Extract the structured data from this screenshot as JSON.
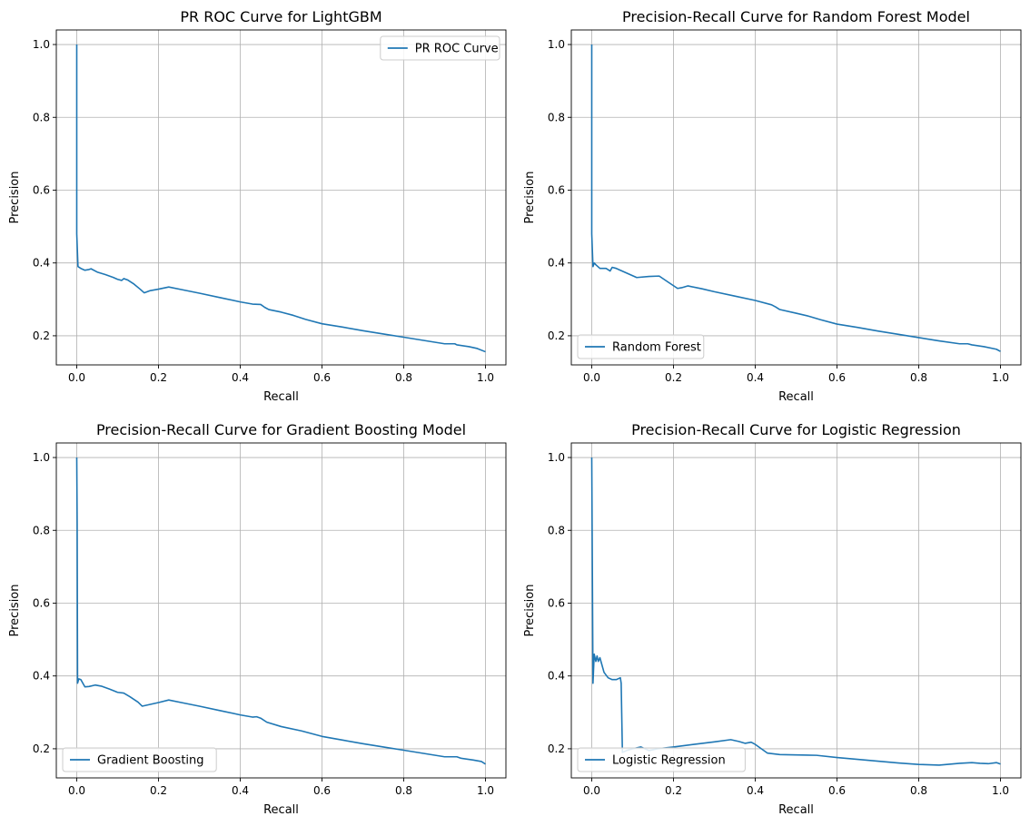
{
  "chart_data": [
    {
      "type": "line",
      "title": "PR ROC Curve for LightGBM",
      "xlabel": "Recall",
      "ylabel": "Precision",
      "xlim": [
        -0.05,
        1.05
      ],
      "ylim": [
        0.12,
        1.04
      ],
      "xticks": [
        "0.0",
        "0.2",
        "0.4",
        "0.6",
        "0.8",
        "1.0"
      ],
      "yticks": [
        "0.2",
        "0.4",
        "0.6",
        "0.8",
        "1.0"
      ],
      "grid": true,
      "legend": "upper right",
      "color": "#1f77b4",
      "series": [
        {
          "name": "PR ROC Curve",
          "points": [
            [
              0.0,
              1.0
            ],
            [
              0.0,
              0.48
            ],
            [
              0.003,
              0.39
            ],
            [
              0.01,
              0.385
            ],
            [
              0.02,
              0.38
            ],
            [
              0.03,
              0.382
            ],
            [
              0.035,
              0.384
            ],
            [
              0.05,
              0.375
            ],
            [
              0.07,
              0.368
            ],
            [
              0.09,
              0.36
            ],
            [
              0.1,
              0.355
            ],
            [
              0.11,
              0.352
            ],
            [
              0.115,
              0.357
            ],
            [
              0.125,
              0.353
            ],
            [
              0.14,
              0.342
            ],
            [
              0.155,
              0.328
            ],
            [
              0.165,
              0.318
            ],
            [
              0.18,
              0.324
            ],
            [
              0.2,
              0.328
            ],
            [
              0.225,
              0.334
            ],
            [
              0.26,
              0.326
            ],
            [
              0.3,
              0.317
            ],
            [
              0.35,
              0.305
            ],
            [
              0.4,
              0.293
            ],
            [
              0.43,
              0.287
            ],
            [
              0.45,
              0.286
            ],
            [
              0.46,
              0.278
            ],
            [
              0.47,
              0.272
            ],
            [
              0.5,
              0.265
            ],
            [
              0.53,
              0.256
            ],
            [
              0.56,
              0.245
            ],
            [
              0.6,
              0.233
            ],
            [
              0.65,
              0.224
            ],
            [
              0.7,
              0.214
            ],
            [
              0.75,
              0.205
            ],
            [
              0.8,
              0.196
            ],
            [
              0.85,
              0.187
            ],
            [
              0.9,
              0.178
            ],
            [
              0.925,
              0.178
            ],
            [
              0.93,
              0.175
            ],
            [
              0.96,
              0.17
            ],
            [
              0.98,
              0.165
            ],
            [
              1.0,
              0.156
            ]
          ]
        }
      ]
    },
    {
      "type": "line",
      "title": "Precision-Recall Curve for Random Forest Model",
      "xlabel": "Recall",
      "ylabel": "Precision",
      "xlim": [
        -0.05,
        1.05
      ],
      "ylim": [
        0.12,
        1.04
      ],
      "xticks": [
        "0.0",
        "0.2",
        "0.4",
        "0.6",
        "0.8",
        "1.0"
      ],
      "yticks": [
        "0.2",
        "0.4",
        "0.6",
        "0.8",
        "1.0"
      ],
      "grid": true,
      "legend": "lower left",
      "color": "#1f77b4",
      "series": [
        {
          "name": "Random Forest",
          "points": [
            [
              0.0,
              1.0
            ],
            [
              0.0,
              0.48
            ],
            [
              0.003,
              0.39
            ],
            [
              0.006,
              0.4
            ],
            [
              0.01,
              0.395
            ],
            [
              0.02,
              0.385
            ],
            [
              0.035,
              0.385
            ],
            [
              0.045,
              0.378
            ],
            [
              0.05,
              0.388
            ],
            [
              0.06,
              0.385
            ],
            [
              0.08,
              0.375
            ],
            [
              0.11,
              0.36
            ],
            [
              0.14,
              0.363
            ],
            [
              0.165,
              0.364
            ],
            [
              0.19,
              0.345
            ],
            [
              0.21,
              0.33
            ],
            [
              0.22,
              0.332
            ],
            [
              0.235,
              0.337
            ],
            [
              0.27,
              0.329
            ],
            [
              0.3,
              0.321
            ],
            [
              0.35,
              0.309
            ],
            [
              0.4,
              0.297
            ],
            [
              0.44,
              0.285
            ],
            [
              0.45,
              0.279
            ],
            [
              0.46,
              0.272
            ],
            [
              0.5,
              0.262
            ],
            [
              0.53,
              0.254
            ],
            [
              0.56,
              0.244
            ],
            [
              0.6,
              0.232
            ],
            [
              0.65,
              0.223
            ],
            [
              0.7,
              0.213
            ],
            [
              0.75,
              0.204
            ],
            [
              0.8,
              0.195
            ],
            [
              0.85,
              0.186
            ],
            [
              0.9,
              0.178
            ],
            [
              0.92,
              0.178
            ],
            [
              0.93,
              0.175
            ],
            [
              0.96,
              0.17
            ],
            [
              0.99,
              0.163
            ],
            [
              1.0,
              0.157
            ]
          ]
        }
      ]
    },
    {
      "type": "line",
      "title": "Precision-Recall Curve for Gradient Boosting Model",
      "xlabel": "Recall",
      "ylabel": "Precision",
      "xlim": [
        -0.05,
        1.05
      ],
      "ylim": [
        0.12,
        1.04
      ],
      "xticks": [
        "0.0",
        "0.2",
        "0.4",
        "0.6",
        "0.8",
        "1.0"
      ],
      "yticks": [
        "0.2",
        "0.4",
        "0.6",
        "0.8",
        "1.0"
      ],
      "grid": true,
      "legend": "lower left",
      "color": "#1f77b4",
      "series": [
        {
          "name": "Gradient Boosting",
          "points": [
            [
              0.0,
              1.0
            ],
            [
              0.001,
              0.82
            ],
            [
              0.002,
              0.38
            ],
            [
              0.005,
              0.392
            ],
            [
              0.01,
              0.39
            ],
            [
              0.02,
              0.37
            ],
            [
              0.03,
              0.371
            ],
            [
              0.045,
              0.375
            ],
            [
              0.06,
              0.372
            ],
            [
              0.08,
              0.364
            ],
            [
              0.1,
              0.355
            ],
            [
              0.115,
              0.353
            ],
            [
              0.13,
              0.343
            ],
            [
              0.15,
              0.328
            ],
            [
              0.16,
              0.317
            ],
            [
              0.18,
              0.322
            ],
            [
              0.2,
              0.327
            ],
            [
              0.225,
              0.334
            ],
            [
              0.26,
              0.326
            ],
            [
              0.3,
              0.317
            ],
            [
              0.35,
              0.305
            ],
            [
              0.4,
              0.293
            ],
            [
              0.43,
              0.287
            ],
            [
              0.44,
              0.288
            ],
            [
              0.45,
              0.284
            ],
            [
              0.465,
              0.273
            ],
            [
              0.5,
              0.261
            ],
            [
              0.55,
              0.249
            ],
            [
              0.6,
              0.234
            ],
            [
              0.65,
              0.224
            ],
            [
              0.7,
              0.214
            ],
            [
              0.75,
              0.205
            ],
            [
              0.8,
              0.196
            ],
            [
              0.85,
              0.187
            ],
            [
              0.9,
              0.178
            ],
            [
              0.93,
              0.178
            ],
            [
              0.94,
              0.174
            ],
            [
              0.97,
              0.169
            ],
            [
              0.99,
              0.165
            ],
            [
              1.0,
              0.158
            ]
          ]
        }
      ]
    },
    {
      "type": "line",
      "title": "Precision-Recall Curve for Logistic Regression",
      "xlabel": "Recall",
      "ylabel": "Precision",
      "xlim": [
        -0.05,
        1.05
      ],
      "ylim": [
        0.12,
        1.04
      ],
      "xticks": [
        "0.0",
        "0.2",
        "0.4",
        "0.6",
        "0.8",
        "1.0"
      ],
      "yticks": [
        "0.2",
        "0.4",
        "0.6",
        "0.8",
        "1.0"
      ],
      "grid": true,
      "legend": "lower left",
      "color": "#1f77b4",
      "series": [
        {
          "name": "Logistic Regression",
          "points": [
            [
              0.0,
              1.0
            ],
            [
              0.003,
              0.38
            ],
            [
              0.006,
              0.46
            ],
            [
              0.01,
              0.44
            ],
            [
              0.013,
              0.455
            ],
            [
              0.016,
              0.44
            ],
            [
              0.02,
              0.45
            ],
            [
              0.03,
              0.41
            ],
            [
              0.04,
              0.395
            ],
            [
              0.05,
              0.39
            ],
            [
              0.06,
              0.39
            ],
            [
              0.07,
              0.395
            ],
            [
              0.072,
              0.38
            ],
            [
              0.075,
              0.19
            ],
            [
              0.085,
              0.195
            ],
            [
              0.1,
              0.2
            ],
            [
              0.12,
              0.205
            ],
            [
              0.13,
              0.2
            ],
            [
              0.14,
              0.195
            ],
            [
              0.16,
              0.2
            ],
            [
              0.2,
              0.205
            ],
            [
              0.25,
              0.212
            ],
            [
              0.3,
              0.219
            ],
            [
              0.34,
              0.225
            ],
            [
              0.36,
              0.22
            ],
            [
              0.375,
              0.215
            ],
            [
              0.39,
              0.218
            ],
            [
              0.4,
              0.212
            ],
            [
              0.43,
              0.188
            ],
            [
              0.46,
              0.184
            ],
            [
              0.5,
              0.183
            ],
            [
              0.55,
              0.182
            ],
            [
              0.6,
              0.176
            ],
            [
              0.65,
              0.171
            ],
            [
              0.7,
              0.166
            ],
            [
              0.75,
              0.161
            ],
            [
              0.8,
              0.157
            ],
            [
              0.85,
              0.155
            ],
            [
              0.9,
              0.16
            ],
            [
              0.93,
              0.162
            ],
            [
              0.95,
              0.16
            ],
            [
              0.97,
              0.159
            ],
            [
              0.99,
              0.162
            ],
            [
              1.0,
              0.158
            ]
          ]
        }
      ]
    }
  ]
}
